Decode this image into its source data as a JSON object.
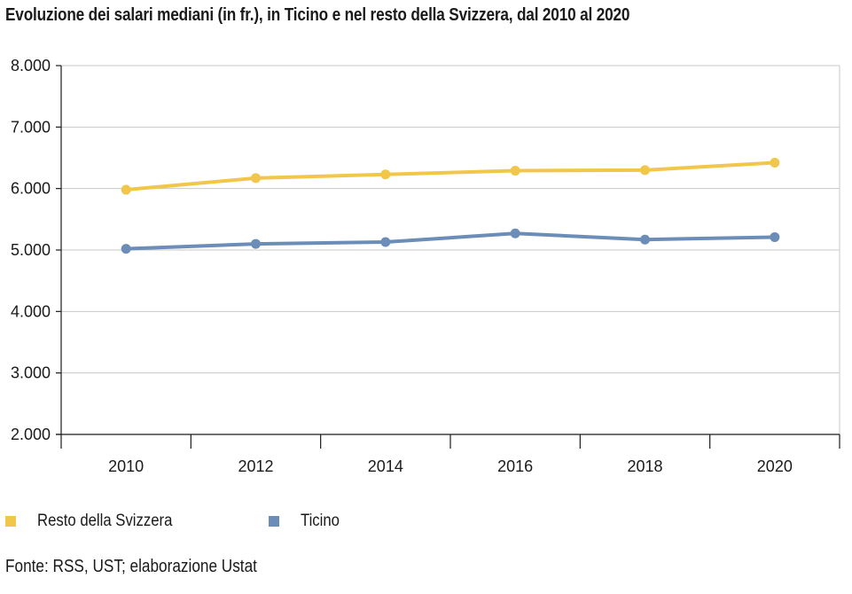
{
  "chart_data": {
    "type": "line",
    "title": "Evoluzione dei salari mediani (in fr.), in Ticino e nel resto della Svizzera, dal 2010 al 2020",
    "categories": [
      "2010",
      "2012",
      "2014",
      "2016",
      "2018",
      "2020"
    ],
    "y_ticks": [
      "2.000",
      "3.000",
      "4.000",
      "5.000",
      "6.000",
      "7.000",
      "8.000"
    ],
    "ylim": [
      2000,
      8000
    ],
    "grid": true,
    "legend_position": "bottom-left",
    "series": [
      {
        "name": "Resto della Svizzera",
        "color": "#f0c748",
        "values": [
          5980,
          6170,
          6230,
          6290,
          6300,
          6420
        ]
      },
      {
        "name": "Ticino",
        "color": "#6b8db7",
        "values": [
          5020,
          5100,
          5130,
          5270,
          5170,
          5210
        ]
      }
    ],
    "source": "Fonte: RSS, UST; elaborazione Ustat"
  }
}
